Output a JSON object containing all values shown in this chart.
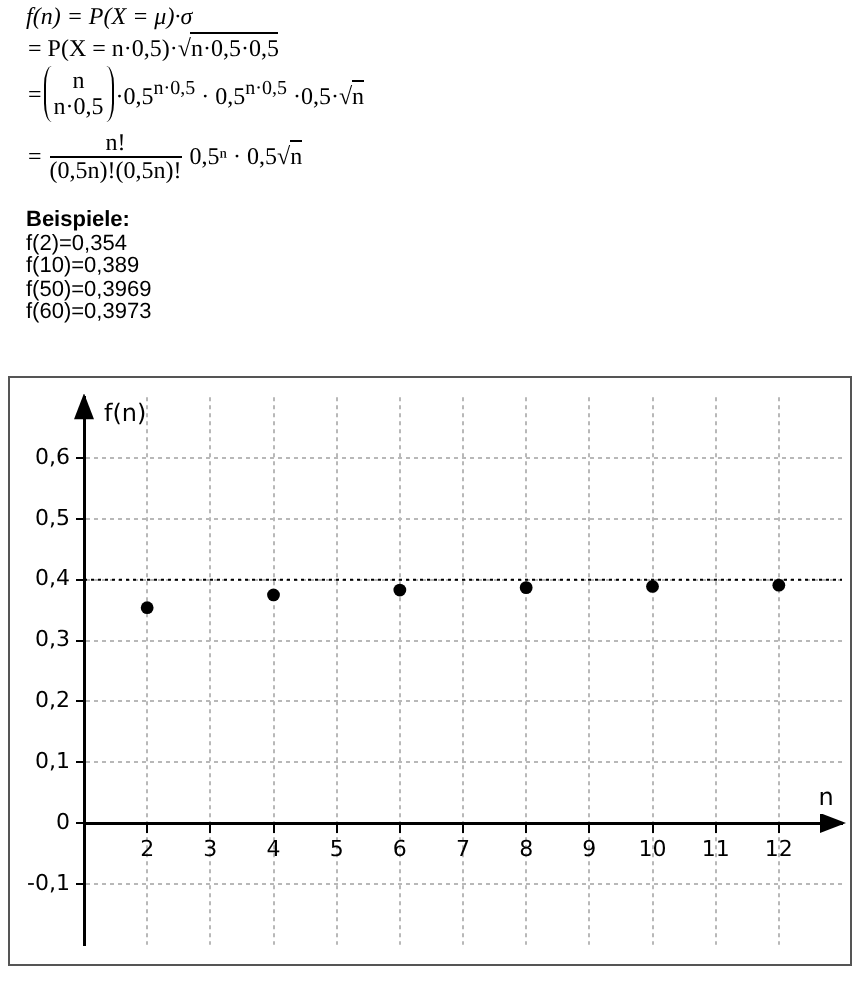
{
  "chart_data": {
    "type": "scatter",
    "xlabel": "n",
    "ylabel": "f(n)",
    "x": [
      2,
      4,
      6,
      8,
      10,
      12
    ],
    "values": [
      0.354,
      0.375,
      0.383,
      0.387,
      0.389,
      0.391
    ],
    "color": "#000000",
    "marker": "circle",
    "xlim": [
      1,
      13
    ],
    "xticks": [
      2,
      3,
      4,
      5,
      6,
      7,
      8,
      9,
      10,
      11,
      12
    ],
    "ylim": [
      -0.2,
      0.7
    ],
    "yticks": [
      {
        "value": -0.1,
        "label": "-0,1"
      },
      0,
      {
        "value": 0.1,
        "label": "0,1"
      },
      {
        "value": 0.2,
        "label": "0,2"
      },
      {
        "value": 0.3,
        "label": "0,3"
      },
      {
        "value": 0.4,
        "label": "0,4"
      },
      {
        "value": 0.5,
        "label": "0,5"
      },
      {
        "value": 0.6,
        "label": "0,6"
      }
    ],
    "grid": true,
    "ref_lines": [
      {
        "axis": "y",
        "value": 0.4,
        "line_style": "dotted",
        "color": "#000000"
      }
    ],
    "annotations": [
      "f(n) = P(X = μ)·σ",
      "= P(X = n·0,5)·√n·0,5·0,5",
      "=",
      "n",
      "n·0,5",
      "·0,5$^{n·0,5}$ · 0,5$^{n·0,5}$ ·0,5·√n",
      "=",
      "n!",
      "(0,5n)!(0,5n)!",
      "0,5ⁿ · 0,5√n",
      "Beispiele:",
      "f(2)=0,354",
      "f(10)=0,389",
      "f(50)=0,3969",
      "f(60)=0,3973"
    ]
  }
}
